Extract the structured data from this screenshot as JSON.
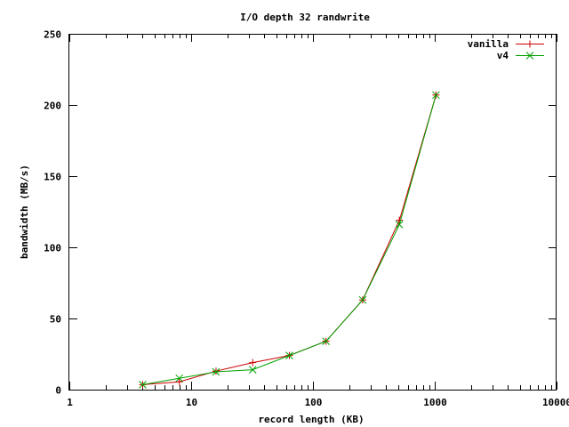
{
  "chart_data": {
    "type": "line",
    "title": "I/O depth 32 randwrite",
    "xlabel": "record length (KB)",
    "ylabel": "bandwidth (MB/s)",
    "xscale": "log",
    "xlim": [
      1,
      10000
    ],
    "ylim": [
      0,
      250
    ],
    "xticks": [
      1,
      10,
      100,
      1000,
      10000
    ],
    "xtick_labels": [
      "1",
      "10",
      "100",
      "1000",
      "10000"
    ],
    "yticks": [
      0,
      50,
      100,
      150,
      200,
      250
    ],
    "ytick_labels": [
      "0",
      "50",
      "100",
      "150",
      "200",
      "250"
    ],
    "grid": false,
    "legend_position": "top-right",
    "x": [
      4,
      8,
      16,
      32,
      64,
      128,
      256,
      512,
      1024
    ],
    "series": [
      {
        "name": "vanilla",
        "color": "#cc0000",
        "marker": "plus",
        "values": [
          3.5,
          5.5,
          13,
          19,
          24,
          34,
          63,
          119,
          207
        ]
      },
      {
        "name": "v4",
        "color": "#00a000",
        "marker": "cross",
        "values": [
          3.5,
          8,
          12.5,
          14,
          24,
          34,
          63,
          116,
          207
        ]
      }
    ]
  }
}
